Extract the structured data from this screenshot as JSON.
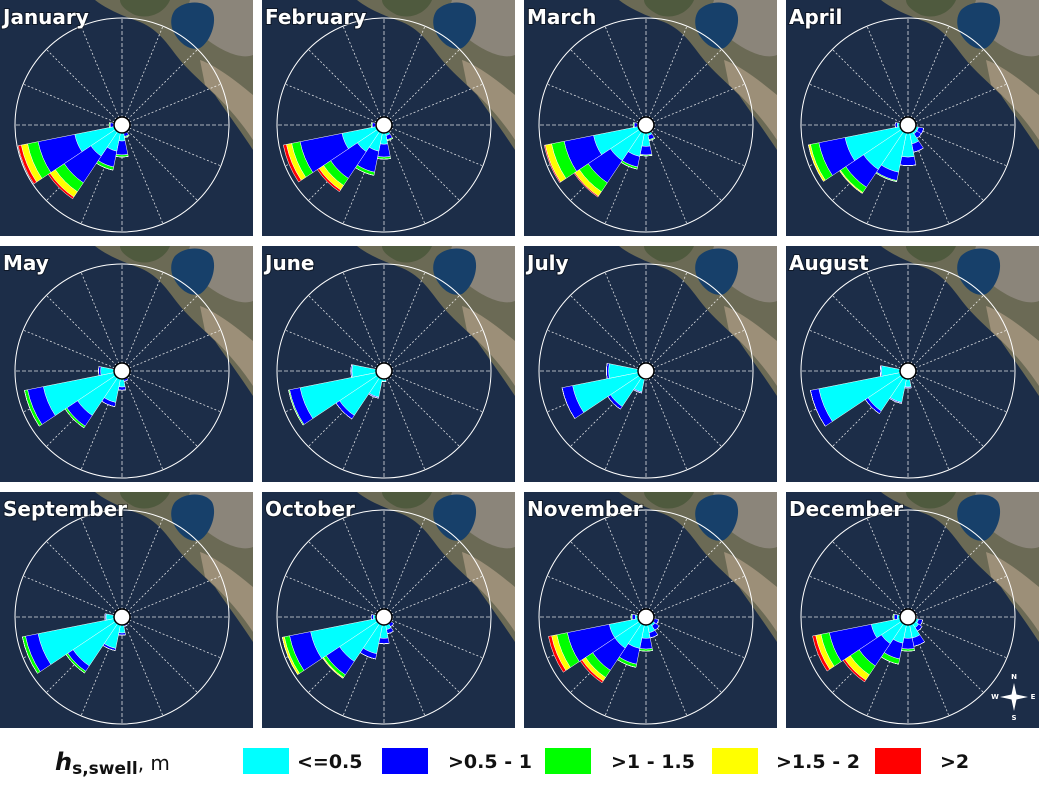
{
  "chart_data": {
    "type": "rose",
    "rlim": [
      0,
      100
    ],
    "categories": [
      null,
      null,
      null,
      null,
      null,
      null,
      null,
      null,
      null,
      null,
      null,
      null,
      null,
      null,
      null,
      null
    ],
    "legend": {
      "symbol": "h",
      "subscript": "s,swell",
      "unit": ", m"
    },
    "series": [
      {
        "name": "<=0.5",
        "color": "#00ffff"
      },
      {
        "name": ">0.5 - 1",
        "color": "#0000ff"
      },
      {
        "name": ">1 - 1.5",
        "color": "#00ff00"
      },
      {
        "name": ">1.5 - 2",
        "color": "#ffff00"
      },
      {
        "name": ">2",
        "color": "#ff0000"
      }
    ],
    "compass": [
      "N",
      "E",
      "S",
      "W"
    ],
    "charts": [
      {
        "title": "January",
        "values": [
          [
            0,
            0,
            0,
            0,
            4,
            4,
            5,
            8,
            15,
            25,
            35,
            45,
            8,
            0,
            0,
            0
          ],
          [
            0,
            0,
            0,
            0,
            0,
            0,
            2,
            3,
            13,
            15,
            30,
            35,
            3,
            0,
            0,
            0
          ],
          [
            0,
            0,
            0,
            0,
            0,
            0,
            0,
            1,
            2,
            3,
            10,
            10,
            1,
            0,
            0,
            0
          ],
          [
            0,
            0,
            0,
            0,
            0,
            0,
            0,
            0,
            0,
            0,
            6,
            6,
            0,
            0,
            0,
            0
          ],
          [
            0,
            0,
            0,
            0,
            0,
            0,
            0,
            0,
            0,
            0,
            2,
            3,
            0,
            0,
            0,
            0
          ]
        ]
      },
      {
        "title": "February",
        "values": [
          [
            0,
            0,
            0,
            0,
            4,
            4,
            6,
            10,
            18,
            25,
            30,
            40,
            8,
            0,
            0,
            0
          ],
          [
            0,
            0,
            0,
            0,
            0,
            0,
            2,
            4,
            12,
            20,
            30,
            40,
            3,
            0,
            0,
            0
          ],
          [
            0,
            0,
            0,
            0,
            0,
            0,
            0,
            1,
            2,
            3,
            8,
            8,
            1,
            0,
            0,
            0
          ],
          [
            0,
            0,
            0,
            0,
            0,
            0,
            0,
            0,
            0,
            0,
            5,
            5,
            0,
            0,
            0,
            0
          ],
          [
            0,
            0,
            0,
            0,
            0,
            0,
            0,
            0,
            0,
            0,
            2,
            3,
            0,
            0,
            0,
            0
          ]
        ]
      },
      {
        "title": "March",
        "values": [
          [
            0,
            0,
            0,
            0,
            4,
            4,
            6,
            10,
            20,
            30,
            40,
            50,
            8,
            0,
            0,
            0
          ],
          [
            0,
            0,
            0,
            0,
            0,
            0,
            2,
            4,
            8,
            10,
            25,
            28,
            3,
            0,
            0,
            0
          ],
          [
            0,
            0,
            0,
            0,
            0,
            0,
            0,
            1,
            1,
            2,
            10,
            12,
            1,
            0,
            0,
            0
          ],
          [
            0,
            0,
            0,
            0,
            0,
            0,
            0,
            0,
            0,
            0,
            5,
            6,
            0,
            0,
            0,
            0
          ],
          [
            0,
            0,
            0,
            0,
            0,
            0,
            0,
            0,
            0,
            0,
            1,
            1,
            0,
            0,
            0,
            0
          ]
        ]
      },
      {
        "title": "April",
        "values": [
          [
            0,
            0,
            0,
            0,
            5,
            10,
            10,
            18,
            30,
            45,
            50,
            60,
            10,
            0,
            0,
            0
          ],
          [
            0,
            0,
            0,
            0,
            2,
            5,
            5,
            8,
            8,
            8,
            20,
            25,
            2,
            0,
            0,
            0
          ],
          [
            0,
            0,
            0,
            0,
            0,
            0,
            0,
            0,
            0,
            1,
            6,
            8,
            0,
            0,
            0,
            0
          ],
          [
            0,
            0,
            0,
            0,
            0,
            0,
            0,
            0,
            0,
            0,
            1,
            2,
            0,
            0,
            0,
            0
          ],
          [
            0,
            0,
            0,
            0,
            0,
            0,
            0,
            0,
            0,
            0,
            0,
            0,
            0,
            0,
            0,
            0
          ]
        ]
      },
      {
        "title": "May",
        "values": [
          [
            0,
            0,
            0,
            0,
            4,
            4,
            5,
            8,
            15,
            30,
            50,
            75,
            20,
            0,
            0,
            0
          ],
          [
            0,
            0,
            0,
            0,
            0,
            0,
            1,
            2,
            3,
            4,
            12,
            15,
            2,
            0,
            0,
            0
          ],
          [
            0,
            0,
            0,
            0,
            0,
            0,
            0,
            0,
            0,
            0,
            2,
            3,
            0,
            0,
            0,
            0
          ],
          [
            0,
            0,
            0,
            0,
            0,
            0,
            0,
            0,
            0,
            0,
            0,
            0,
            0,
            0,
            0,
            0
          ],
          [
            0,
            0,
            0,
            0,
            0,
            0,
            0,
            0,
            0,
            0,
            0,
            0,
            0,
            0,
            0,
            0
          ]
        ]
      },
      {
        "title": "June",
        "values": [
          [
            0,
            0,
            0,
            0,
            4,
            4,
            5,
            6,
            10,
            25,
            50,
            80,
            30,
            0,
            0,
            0
          ],
          [
            0,
            0,
            0,
            0,
            0,
            0,
            0,
            0,
            0,
            1,
            4,
            10,
            1,
            0,
            0,
            0
          ],
          [
            0,
            0,
            0,
            0,
            0,
            0,
            0,
            0,
            0,
            0,
            0,
            1,
            0,
            0,
            0,
            0
          ],
          [
            0,
            0,
            0,
            0,
            0,
            0,
            0,
            0,
            0,
            0,
            0,
            0,
            0,
            0,
            0,
            0
          ],
          [
            0,
            0,
            0,
            0,
            0,
            0,
            0,
            0,
            0,
            0,
            0,
            0,
            0,
            0,
            0,
            0
          ]
        ]
      },
      {
        "title": "July",
        "values": [
          [
            0,
            0,
            0,
            0,
            3,
            3,
            4,
            5,
            8,
            20,
            40,
            70,
            35,
            0,
            0,
            0
          ],
          [
            0,
            0,
            0,
            0,
            0,
            0,
            0,
            0,
            0,
            1,
            3,
            10,
            2,
            0,
            0,
            0
          ],
          [
            0,
            0,
            0,
            0,
            0,
            0,
            0,
            0,
            0,
            0,
            0,
            0,
            0,
            0,
            0,
            0
          ],
          [
            0,
            0,
            0,
            0,
            0,
            0,
            0,
            0,
            0,
            0,
            0,
            0,
            0,
            0,
            0,
            0
          ],
          [
            0,
            0,
            0,
            0,
            0,
            0,
            0,
            0,
            0,
            0,
            0,
            0,
            0,
            0,
            0,
            0
          ]
        ]
      },
      {
        "title": "August",
        "values": [
          [
            0,
            0,
            0,
            0,
            4,
            4,
            5,
            8,
            15,
            30,
            45,
            85,
            25,
            0,
            0,
            0
          ],
          [
            0,
            0,
            0,
            0,
            0,
            0,
            0,
            0,
            1,
            1,
            3,
            8,
            1,
            0,
            0,
            0
          ],
          [
            0,
            0,
            0,
            0,
            0,
            0,
            0,
            0,
            0,
            0,
            0,
            0,
            0,
            0,
            0,
            0
          ],
          [
            0,
            0,
            0,
            0,
            0,
            0,
            0,
            0,
            0,
            0,
            0,
            0,
            0,
            0,
            0,
            0
          ],
          [
            0,
            0,
            0,
            0,
            0,
            0,
            0,
            0,
            0,
            0,
            0,
            0,
            0,
            0,
            0,
            0
          ]
        ]
      },
      {
        "title": "September",
        "values": [
          [
            0,
            0,
            0,
            0,
            4,
            4,
            5,
            8,
            15,
            30,
            55,
            80,
            15,
            0,
            0,
            0
          ],
          [
            0,
            0,
            0,
            0,
            0,
            0,
            1,
            1,
            2,
            2,
            6,
            12,
            1,
            0,
            0,
            0
          ],
          [
            0,
            0,
            0,
            0,
            0,
            0,
            0,
            0,
            0,
            0,
            2,
            3,
            0,
            0,
            0,
            0
          ],
          [
            0,
            0,
            0,
            0,
            0,
            0,
            0,
            0,
            0,
            0,
            0,
            0,
            0,
            0,
            0,
            0
          ],
          [
            0,
            0,
            0,
            0,
            0,
            0,
            0,
            0,
            0,
            0,
            0,
            0,
            0,
            0,
            0,
            0
          ]
        ]
      },
      {
        "title": "October",
        "values": [
          [
            0,
            0,
            0,
            0,
            4,
            6,
            8,
            12,
            20,
            35,
            50,
            70,
            10,
            0,
            0,
            0
          ],
          [
            0,
            0,
            0,
            0,
            1,
            2,
            3,
            4,
            5,
            5,
            15,
            20,
            2,
            0,
            0,
            0
          ],
          [
            0,
            0,
            0,
            0,
            0,
            0,
            0,
            0,
            0,
            0,
            3,
            5,
            0,
            0,
            0,
            0
          ],
          [
            0,
            0,
            0,
            0,
            0,
            0,
            0,
            0,
            0,
            0,
            1,
            2,
            0,
            0,
            0,
            0
          ],
          [
            0,
            0,
            0,
            0,
            0,
            0,
            0,
            0,
            0,
            0,
            0,
            0,
            0,
            0,
            0,
            0
          ]
        ]
      },
      {
        "title": "November",
        "values": [
          [
            0,
            0,
            0,
            0,
            5,
            8,
            10,
            15,
            20,
            30,
            35,
            35,
            10,
            0,
            0,
            0
          ],
          [
            0,
            0,
            0,
            0,
            2,
            4,
            5,
            5,
            10,
            15,
            25,
            40,
            3,
            0,
            0,
            0
          ],
          [
            0,
            0,
            0,
            0,
            0,
            0,
            0,
            0,
            2,
            3,
            8,
            10,
            1,
            0,
            0,
            0
          ],
          [
            0,
            0,
            0,
            0,
            0,
            0,
            0,
            0,
            0,
            0,
            4,
            5,
            0,
            0,
            0,
            0
          ],
          [
            0,
            0,
            0,
            0,
            0,
            0,
            0,
            0,
            0,
            0,
            2,
            3,
            0,
            0,
            0,
            0
          ]
        ]
      },
      {
        "title": "December",
        "values": [
          [
            0,
            0,
            0,
            0,
            6,
            10,
            12,
            20,
            20,
            25,
            30,
            35,
            10,
            0,
            0,
            0
          ],
          [
            0,
            0,
            0,
            0,
            2,
            4,
            4,
            8,
            10,
            15,
            25,
            40,
            3,
            0,
            0,
            0
          ],
          [
            0,
            0,
            0,
            0,
            0,
            0,
            0,
            0,
            2,
            5,
            10,
            8,
            1,
            0,
            0,
            0
          ],
          [
            0,
            0,
            0,
            0,
            0,
            0,
            0,
            0,
            0,
            0,
            6,
            5,
            0,
            0,
            0,
            0
          ],
          [
            0,
            0,
            0,
            0,
            0,
            0,
            0,
            0,
            0,
            0,
            2,
            3,
            0,
            0,
            0,
            0
          ]
        ]
      }
    ]
  }
}
